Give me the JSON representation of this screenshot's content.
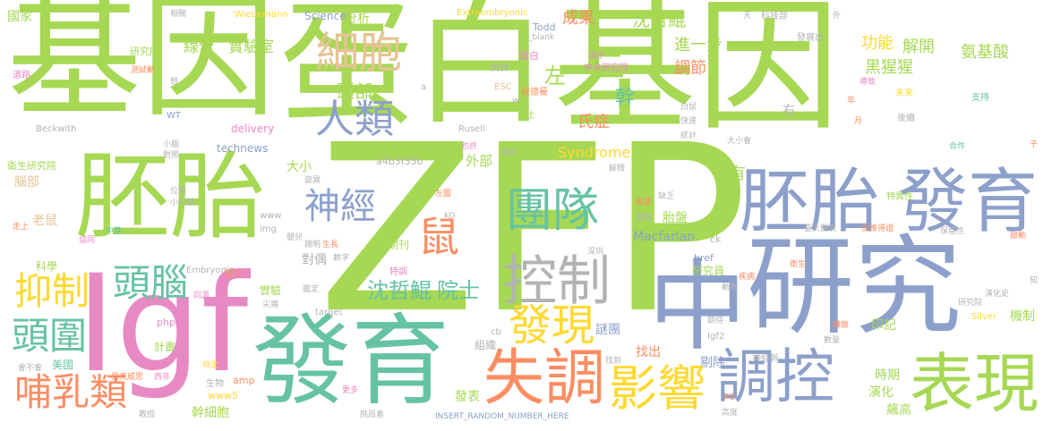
{
  "palette": {
    "green": "#a6d854",
    "blue": "#8da0cb",
    "teal": "#66c2a5",
    "orange": "#fc8d62",
    "yellow": "#ffd92f",
    "pink": "#e78ac3",
    "tan": "#e5c494",
    "grey": "#b3b3b3"
  },
  "words": [
    {
      "text": "基因",
      "color": "green"
    },
    {
      "text": "蛋白",
      "color": "green"
    },
    {
      "text": "基因",
      "color": "green"
    },
    {
      "text": "ZFP",
      "color": "green"
    },
    {
      "text": "胚胎",
      "color": "green"
    },
    {
      "text": "Igf",
      "color": "pink"
    },
    {
      "text": "發育",
      "color": "teal"
    },
    {
      "text": "研究",
      "color": "blue"
    },
    {
      "text": "中",
      "color": "blue"
    },
    {
      "text": "胚胎",
      "color": "blue"
    },
    {
      "text": "發育",
      "color": "blue"
    },
    {
      "text": "表現",
      "color": "green"
    },
    {
      "text": "失調",
      "color": "orange"
    },
    {
      "text": "調控",
      "color": "blue"
    },
    {
      "text": "影響",
      "color": "yellow"
    },
    {
      "text": "控制",
      "color": "grey"
    },
    {
      "text": "發現",
      "color": "yellow"
    },
    {
      "text": "團隊",
      "color": "teal"
    },
    {
      "text": "細胞",
      "color": "tan"
    },
    {
      "text": "人類",
      "color": "blue"
    },
    {
      "text": "頭腦",
      "color": "teal"
    },
    {
      "text": "鼠",
      "color": "orange"
    },
    {
      "text": "抑制",
      "color": "yellow"
    },
    {
      "text": "頭圍",
      "color": "teal"
    },
    {
      "text": "哺乳類",
      "color": "orange"
    },
    {
      "text": "神經",
      "color": "blue"
    },
    {
      "text": "沈哲鯤",
      "color": "teal"
    },
    {
      "text": "院士",
      "color": "teal"
    },
    {
      "text": "二",
      "color": "green"
    },
    {
      "text": "沈哲鯤",
      "color": "green"
    },
    {
      "text": "線索",
      "color": "green"
    },
    {
      "text": "實驗室",
      "color": "green"
    },
    {
      "text": "頭部",
      "color": "green"
    },
    {
      "text": "左",
      "color": "green"
    },
    {
      "text": "成果",
      "color": "orange"
    },
    {
      "text": "進一步",
      "color": "green"
    },
    {
      "text": "調節",
      "color": "orange"
    },
    {
      "text": "功能",
      "color": "yellow"
    },
    {
      "text": "解開",
      "color": "green"
    },
    {
      "text": "氨基酸",
      "color": "green"
    },
    {
      "text": "黑猩猩",
      "color": "green"
    },
    {
      "text": "幹",
      "color": "teal"
    },
    {
      "text": "氏症",
      "color": "orange"
    },
    {
      "text": "右",
      "color": "grey"
    },
    {
      "text": "Syndrome",
      "color": "yellow"
    },
    {
      "text": "確認",
      "color": "green"
    },
    {
      "text": "帶有",
      "color": "green"
    },
    {
      "text": "越",
      "color": "green"
    },
    {
      "text": "外部",
      "color": "green"
    },
    {
      "text": "大小",
      "color": "green"
    },
    {
      "text": "胎盤",
      "color": "green"
    },
    {
      "text": "Macfarlan",
      "color": "blue"
    },
    {
      "text": "研究員",
      "color": "green"
    },
    {
      "text": "機制",
      "color": "green"
    },
    {
      "text": "印記",
      "color": "green"
    },
    {
      "text": "謎團",
      "color": "blue"
    },
    {
      "text": "找出",
      "color": "orange"
    },
    {
      "text": "剔除",
      "color": "blue"
    },
    {
      "text": "時期",
      "color": "green"
    },
    {
      "text": "演化",
      "color": "green"
    },
    {
      "text": "飆高",
      "color": "green"
    },
    {
      "text": "對偶",
      "color": "grey"
    },
    {
      "text": "實驗",
      "color": "green"
    },
    {
      "text": "計畫",
      "color": "green"
    },
    {
      "text": "科學",
      "color": "green"
    },
    {
      "text": "老鼠",
      "color": "tan"
    },
    {
      "text": "腦部",
      "color": "tan"
    },
    {
      "text": "美國",
      "color": "teal"
    },
    {
      "text": "幹細胞",
      "color": "green"
    },
    {
      "text": "博士",
      "color": "orange"
    },
    {
      "text": "發表",
      "color": "green"
    },
    {
      "text": "組織",
      "color": "grey"
    },
    {
      "text": "期刊",
      "color": "green"
    },
    {
      "text": "國家",
      "color": "green"
    },
    {
      "text": "研究所",
      "color": "green"
    },
    {
      "text": "衛生研究院",
      "color": "green"
    },
    {
      "text": "分析",
      "color": "green"
    },
    {
      "text": "Science",
      "color": "blue"
    },
    {
      "text": "Todd",
      "color": "blue"
    },
    {
      "text": "technews",
      "color": "blue"
    },
    {
      "text": "delivery",
      "color": "pink"
    },
    {
      "text": "Wiedemann",
      "color": "yellow"
    },
    {
      "text": "Extraembryonic",
      "color": "yellow"
    },
    {
      "text": "Embryonic",
      "color": "grey"
    },
    {
      "text": "INSERT_RANDOM_NUMBER_HERE",
      "color": "blue"
    },
    {
      "text": "a4b3f35b",
      "color": "grey"
    },
    {
      "text": "Beckwith",
      "color": "grey"
    },
    {
      "text": "Rusell",
      "color": "grey"
    },
    {
      "text": "WT",
      "color": "blue"
    },
    {
      "text": "amp",
      "color": "orange"
    },
    {
      "text": "www5",
      "color": "yellow"
    },
    {
      "text": "php",
      "color": "pink"
    },
    {
      "text": "img",
      "color": "grey"
    },
    {
      "text": "www",
      "color": "grey"
    },
    {
      "text": "href",
      "color": "blue"
    },
    {
      "text": "Silver",
      "color": "yellow"
    },
    {
      "text": "target",
      "color": "grey"
    },
    {
      "text": "Igf2",
      "color": "grey"
    },
    {
      "text": "ck",
      "color": "grey"
    },
    {
      "text": "PO",
      "color": "orange"
    },
    {
      "text": "cb",
      "color": "grey"
    },
    {
      "text": "n",
      "color": "grey"
    },
    {
      "text": "a",
      "color": "grey"
    },
    {
      "text": "w",
      "color": "grey"
    },
    {
      "text": "ESC",
      "color": "tan"
    },
    {
      "text": "KO",
      "color": "grey"
    },
    {
      "text": "中央研究院",
      "color": "pink"
    },
    {
      "text": "因子",
      "color": "pink"
    },
    {
      "text": "蛋白",
      "color": "pink"
    },
    {
      "text": "_blank",
      "color": "grey"
    },
    {
      "text": "科技部",
      "color": "grey"
    },
    {
      "text": "發展出",
      "color": "grey"
    },
    {
      "text": "天",
      "color": "grey"
    },
    {
      "text": "外",
      "color": "grey"
    },
    {
      "text": "相關",
      "color": "grey"
    },
    {
      "text": "道路",
      "color": "pink"
    },
    {
      "text": "測試動",
      "color": "orange"
    },
    {
      "text": "想",
      "color": "grey"
    },
    {
      "text": "負責",
      "color": "grey"
    },
    {
      "text": "威德曼",
      "color": "orange"
    },
    {
      "text": "院士",
      "color": "green"
    },
    {
      "text": "導致",
      "color": "pink"
    },
    {
      "text": "白鼠",
      "color": "grey"
    },
    {
      "text": "快速",
      "color": "grey"
    },
    {
      "text": "統計",
      "color": "grey"
    },
    {
      "text": "後續",
      "color": "grey"
    },
    {
      "text": "未來",
      "color": "yellow"
    },
    {
      "text": "支持",
      "color": "teal"
    },
    {
      "text": "年",
      "color": "orange"
    },
    {
      "text": "月",
      "color": "orange"
    },
    {
      "text": "小腦",
      "color": "grey"
    },
    {
      "text": "對照",
      "color": "grey"
    },
    {
      "text": "大小會",
      "color": "grey"
    },
    {
      "text": "合作",
      "color": "teal"
    },
    {
      "text": "子",
      "color": "orange"
    },
    {
      "text": "也許",
      "color": "pink"
    },
    {
      "text": "藉由",
      "color": "grey"
    },
    {
      "text": "解釋",
      "color": "grey"
    },
    {
      "text": "特異性",
      "color": "green"
    },
    {
      "text": "位點",
      "color": "grey"
    },
    {
      "text": "小兒部",
      "color": "grey"
    },
    {
      "text": "變異",
      "color": "grey"
    },
    {
      "text": "經費",
      "color": "orange"
    },
    {
      "text": "缺乏",
      "color": "grey"
    },
    {
      "text": "基礎",
      "color": "grey"
    },
    {
      "text": "左圖",
      "color": "orange"
    },
    {
      "text": "中基",
      "color": "teal"
    },
    {
      "text": "協同",
      "color": "pink"
    },
    {
      "text": "走上",
      "color": "orange"
    },
    {
      "text": "臺大醫院",
      "color": "grey"
    },
    {
      "text": "反推得證",
      "color": "orange"
    },
    {
      "text": "保留性",
      "color": "grey"
    },
    {
      "text": "啟動",
      "color": "orange"
    },
    {
      "text": "衛生",
      "color": "orange"
    },
    {
      "text": "疾病",
      "color": "orange"
    },
    {
      "text": "動物",
      "color": "grey"
    },
    {
      "text": "演化史",
      "color": "grey"
    },
    {
      "text": "知",
      "color": "grey"
    },
    {
      "text": "研究院",
      "color": "grey"
    },
    {
      "text": "聰明",
      "color": "grey"
    },
    {
      "text": "生長",
      "color": "orange"
    },
    {
      "text": "數字",
      "color": "grey"
    },
    {
      "text": "嬰兒",
      "color": "grey"
    },
    {
      "text": "深圳",
      "color": "grey"
    },
    {
      "text": "特調",
      "color": "pink"
    },
    {
      "text": "鑑定",
      "color": "grey"
    },
    {
      "text": "同源",
      "color": "pink"
    },
    {
      "text": "尖端",
      "color": "grey"
    },
    {
      "text": "會不會",
      "color": "grey"
    },
    {
      "text": "西非",
      "color": "pink"
    },
    {
      "text": "貝克威思",
      "color": "orange"
    },
    {
      "text": "特定",
      "color": "yellow"
    },
    {
      "text": "生物",
      "color": "grey"
    },
    {
      "text": "數量",
      "color": "grey"
    },
    {
      "text": "轉錄",
      "color": "orange"
    },
    {
      "text": "神經幹",
      "color": "grey"
    },
    {
      "text": "高度",
      "color": "grey"
    },
    {
      "text": "更多",
      "color": "pink"
    },
    {
      "text": "挑局素",
      "color": "grey"
    },
    {
      "text": "教授",
      "color": "grey"
    },
    {
      "text": "找到",
      "color": "grey"
    },
    {
      "text": "期待",
      "color": "grey"
    }
  ]
}
